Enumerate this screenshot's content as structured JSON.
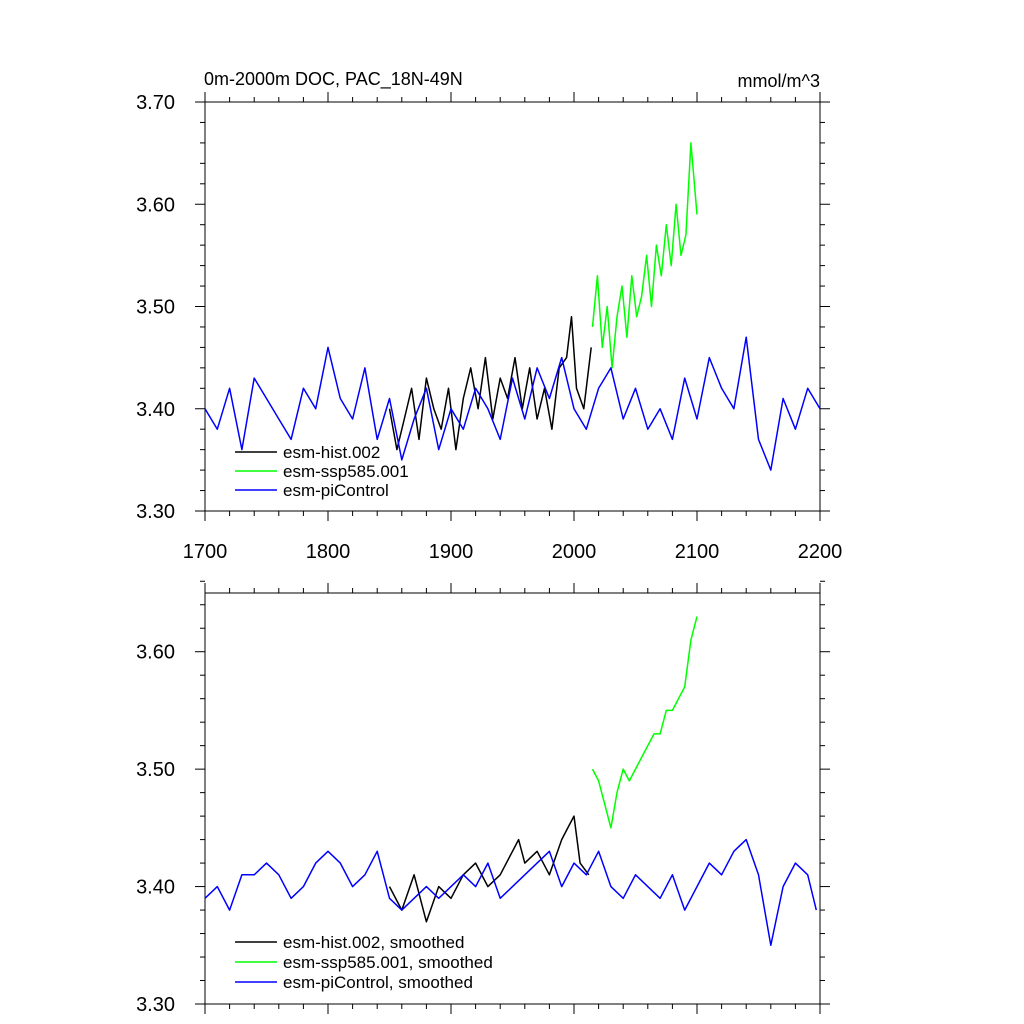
{
  "chart_data": [
    {
      "type": "line",
      "title": "0m-2000m DOC, PAC_18N-49N",
      "units": "mmol/m^3",
      "xlim": [
        1700,
        2200
      ],
      "ylim": [
        3.3,
        3.7
      ],
      "x_ticks": [
        "1700",
        "1800",
        "1900",
        "2000",
        "2100",
        "2200"
      ],
      "y_ticks": [
        "3.30",
        "3.40",
        "3.50",
        "3.60",
        "3.70"
      ],
      "legend_position": "bottom-left",
      "series": [
        {
          "name": "esm-hist.002",
          "color": "#000000",
          "x": [
            1850,
            1856,
            1862,
            1868,
            1874,
            1880,
            1886,
            1892,
            1898,
            1904,
            1910,
            1916,
            1922,
            1928,
            1934,
            1940,
            1946,
            1952,
            1958,
            1964,
            1970,
            1976,
            1982,
            1988,
            1994,
            1998,
            2002,
            2008,
            2014
          ],
          "values": [
            3.4,
            3.36,
            3.39,
            3.42,
            3.37,
            3.43,
            3.4,
            3.38,
            3.42,
            3.36,
            3.41,
            3.44,
            3.4,
            3.45,
            3.39,
            3.43,
            3.41,
            3.45,
            3.4,
            3.44,
            3.39,
            3.42,
            3.38,
            3.44,
            3.45,
            3.49,
            3.42,
            3.4,
            3.46
          ]
        },
        {
          "name": "esm-ssp585.001",
          "color": "#00ff00",
          "x": [
            2015,
            2019,
            2023,
            2027,
            2031,
            2035,
            2039,
            2043,
            2047,
            2051,
            2055,
            2059,
            2063,
            2067,
            2071,
            2075,
            2079,
            2083,
            2087,
            2091,
            2095,
            2100
          ],
          "values": [
            3.48,
            3.53,
            3.46,
            3.5,
            3.44,
            3.49,
            3.52,
            3.47,
            3.53,
            3.49,
            3.51,
            3.55,
            3.5,
            3.56,
            3.53,
            3.58,
            3.54,
            3.6,
            3.55,
            3.57,
            3.66,
            3.59
          ]
        },
        {
          "name": "esm-piControl",
          "color": "#0000ff",
          "x": [
            1700,
            1710,
            1720,
            1730,
            1740,
            1750,
            1760,
            1770,
            1780,
            1790,
            1800,
            1810,
            1820,
            1830,
            1840,
            1850,
            1860,
            1870,
            1880,
            1890,
            1900,
            1910,
            1920,
            1930,
            1940,
            1950,
            1960,
            1970,
            1980,
            1990,
            2000,
            2010,
            2020,
            2030,
            2040,
            2050,
            2060,
            2070,
            2080,
            2090,
            2100,
            2110,
            2120,
            2130,
            2140,
            2150,
            2160,
            2170,
            2180,
            2190,
            2200
          ],
          "values": [
            3.4,
            3.38,
            3.42,
            3.36,
            3.43,
            3.41,
            3.39,
            3.37,
            3.42,
            3.4,
            3.46,
            3.41,
            3.39,
            3.44,
            3.37,
            3.41,
            3.35,
            3.39,
            3.42,
            3.36,
            3.4,
            3.38,
            3.42,
            3.4,
            3.37,
            3.43,
            3.39,
            3.44,
            3.41,
            3.45,
            3.4,
            3.38,
            3.42,
            3.44,
            3.39,
            3.42,
            3.38,
            3.4,
            3.37,
            3.43,
            3.39,
            3.45,
            3.42,
            3.4,
            3.47,
            3.37,
            3.34,
            3.41,
            3.38,
            3.42,
            3.4
          ]
        }
      ]
    },
    {
      "type": "line",
      "xlim": [
        1700,
        2200
      ],
      "ylim": [
        3.3,
        3.65
      ],
      "y_ticks": [
        "3.30",
        "3.40",
        "3.50",
        "3.60"
      ],
      "legend_position": "bottom-left",
      "series": [
        {
          "name": "esm-hist.002, smoothed",
          "color": "#000000",
          "x": [
            1850,
            1860,
            1870,
            1880,
            1890,
            1900,
            1910,
            1920,
            1930,
            1940,
            1950,
            1955,
            1960,
            1970,
            1980,
            1990,
            1995,
            2000,
            2005,
            2012
          ],
          "values": [
            3.4,
            3.38,
            3.41,
            3.37,
            3.4,
            3.39,
            3.41,
            3.42,
            3.4,
            3.41,
            3.43,
            3.44,
            3.42,
            3.43,
            3.41,
            3.44,
            3.45,
            3.46,
            3.42,
            3.41
          ]
        },
        {
          "name": "esm-ssp585.001, smoothed",
          "color": "#00ff00",
          "x": [
            2015,
            2020,
            2025,
            2030,
            2035,
            2040,
            2045,
            2050,
            2055,
            2060,
            2065,
            2070,
            2075,
            2080,
            2085,
            2090,
            2095,
            2100
          ],
          "values": [
            3.5,
            3.49,
            3.47,
            3.45,
            3.48,
            3.5,
            3.49,
            3.5,
            3.51,
            3.52,
            3.53,
            3.53,
            3.55,
            3.55,
            3.56,
            3.57,
            3.61,
            3.63
          ]
        },
        {
          "name": "esm-piControl, smoothed",
          "color": "#0000ff",
          "x": [
            1700,
            1710,
            1720,
            1730,
            1740,
            1750,
            1760,
            1770,
            1780,
            1790,
            1800,
            1810,
            1820,
            1830,
            1840,
            1850,
            1860,
            1870,
            1880,
            1890,
            1900,
            1910,
            1920,
            1930,
            1940,
            1950,
            1960,
            1970,
            1980,
            1990,
            2000,
            2010,
            2020,
            2030,
            2040,
            2050,
            2060,
            2070,
            2080,
            2090,
            2100,
            2110,
            2120,
            2130,
            2140,
            2150,
            2160,
            2170,
            2180,
            2190,
            2197
          ],
          "values": [
            3.39,
            3.4,
            3.38,
            3.41,
            3.41,
            3.42,
            3.41,
            3.39,
            3.4,
            3.42,
            3.43,
            3.42,
            3.4,
            3.41,
            3.43,
            3.39,
            3.38,
            3.39,
            3.4,
            3.39,
            3.4,
            3.41,
            3.4,
            3.42,
            3.39,
            3.4,
            3.41,
            3.42,
            3.43,
            3.4,
            3.42,
            3.41,
            3.43,
            3.4,
            3.39,
            3.41,
            3.4,
            3.39,
            3.41,
            3.38,
            3.4,
            3.42,
            3.41,
            3.43,
            3.44,
            3.41,
            3.35,
            3.4,
            3.42,
            3.41,
            3.38
          ]
        }
      ]
    }
  ]
}
